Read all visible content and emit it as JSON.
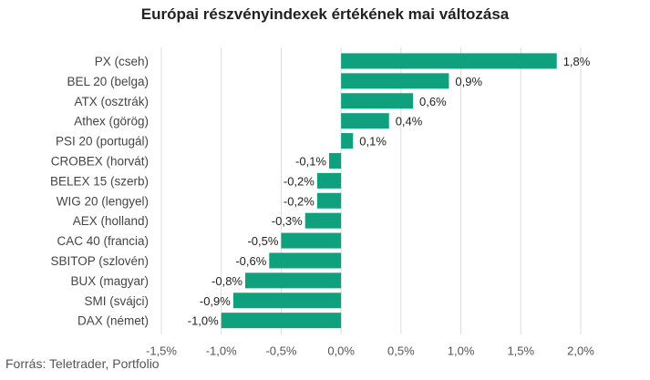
{
  "chart_data": {
    "type": "bar",
    "orientation": "horizontal",
    "title": "Európai részvényindexek értékének mai változása",
    "source": "Forrás: Teletrader, Portfolio",
    "categories": [
      "PX (cseh)",
      "BEL 20 (belga)",
      "ATX (osztrák)",
      "Athex (görög)",
      "PSI 20 (portugál)",
      "CROBEX (horvát)",
      "BELEX 15 (szerb)",
      "WIG 20 (lengyel)",
      "AEX (holland)",
      "CAC 40 (francia)",
      "SBITOP (szlovén)",
      "BUX (magyar)",
      "SMI (svájci)",
      "DAX (német)"
    ],
    "values": [
      1.8,
      0.9,
      0.6,
      0.4,
      0.1,
      -0.1,
      -0.2,
      -0.2,
      -0.3,
      -0.5,
      -0.6,
      -0.8,
      -0.9,
      -1.0
    ],
    "value_labels": [
      "1,8%",
      "0,9%",
      "0,6%",
      "0,4%",
      "0,1%",
      "-0,1%",
      "-0,2%",
      "-0,2%",
      "-0,3%",
      "-0,5%",
      "-0,6%",
      "-0,8%",
      "-0,9%",
      "-1,0%"
    ],
    "xlim": [
      -1.5,
      2.0
    ],
    "x_ticks": [
      -1.5,
      -1.0,
      -0.5,
      0.0,
      0.5,
      1.0,
      1.5,
      2.0
    ],
    "x_tick_labels": [
      "-1,5%",
      "-1,0%",
      "-0,5%",
      "0,0%",
      "0,5%",
      "1,0%",
      "1,5%",
      "2,0%"
    ],
    "grid": true,
    "xlabel": "",
    "ylabel": "",
    "bar_color": "#0fa07e",
    "grid_color": "#dddddd"
  }
}
